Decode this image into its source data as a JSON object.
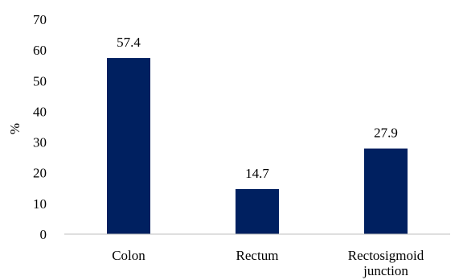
{
  "chart_data": {
    "type": "bar",
    "categories": [
      "Colon",
      "Rectum",
      "Rectosigmoid junction"
    ],
    "category_lines": [
      [
        "Colon"
      ],
      [
        "Rectum"
      ],
      [
        "Rectosigmoid",
        "junction"
      ]
    ],
    "values": [
      57.4,
      14.7,
      27.9
    ],
    "data_labels": [
      "57.4",
      "14.7",
      "27.9"
    ],
    "title": "",
    "xlabel": "",
    "ylabel": "%",
    "ylim": [
      0,
      70
    ],
    "yticks": [
      0,
      10,
      20,
      30,
      40,
      50,
      60,
      70
    ],
    "grid": false,
    "legend": "none",
    "bar_color": "#002060"
  }
}
